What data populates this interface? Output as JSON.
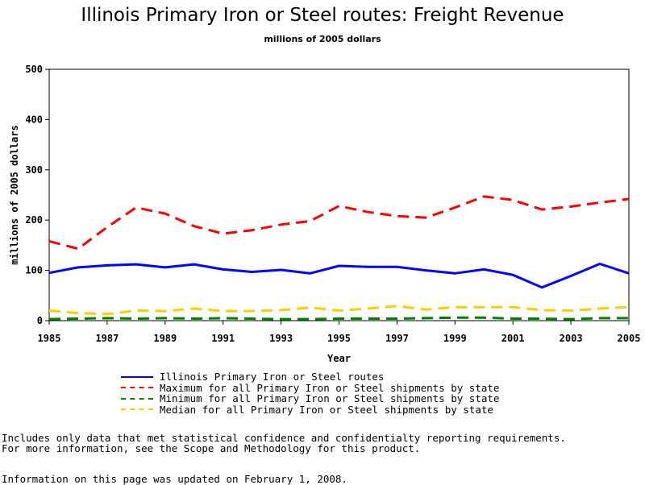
{
  "chart_data": {
    "type": "line",
    "title": "Illinois Primary Iron or Steel routes: Freight Revenue",
    "subtitle": "millions of 2005 dollars",
    "xlabel": "Year",
    "ylabel": "millions of 2005 dollars",
    "xlim": [
      1985,
      2005
    ],
    "ylim": [
      0,
      500
    ],
    "x_ticks": [
      1985,
      1987,
      1989,
      1991,
      1993,
      1995,
      1997,
      1999,
      2001,
      2003,
      2005
    ],
    "y_ticks": [
      0,
      100,
      200,
      300,
      400,
      500
    ],
    "x": [
      1985,
      1986,
      1987,
      1988,
      1989,
      1990,
      1991,
      1992,
      1993,
      1994,
      1995,
      1996,
      1997,
      1998,
      1999,
      2000,
      2001,
      2002,
      2003,
      2004,
      2005
    ],
    "series": [
      {
        "name": "Illinois Primary Iron or Steel routes",
        "color": "#0000ff",
        "style": "solid",
        "values": [
          95,
          106,
          110,
          112,
          106,
          112,
          102,
          97,
          101,
          94,
          109,
          107,
          107,
          100,
          94,
          102,
          91,
          66,
          89,
          113,
          94
        ]
      },
      {
        "name": "Maximum for all Primary Iron or Steel shipments by state",
        "color": "#ff0000",
        "style": "dashed",
        "values": [
          158,
          143,
          186,
          225,
          213,
          188,
          173,
          180,
          191,
          198,
          228,
          216,
          208,
          205,
          225,
          247,
          240,
          221,
          227,
          235,
          242
        ]
      },
      {
        "name": "Minimum for all Primary Iron or Steel shipments by state",
        "color": "#008000",
        "style": "dashed",
        "values": [
          3,
          4,
          5,
          4,
          5,
          4,
          5,
          4,
          3,
          3,
          4,
          4,
          4,
          5,
          6,
          6,
          4,
          4,
          3,
          5,
          5
        ]
      },
      {
        "name": "Median for all Primary Iron or Steel shipments by state",
        "color": "#ffcc00",
        "style": "dashed",
        "values": [
          20,
          15,
          13,
          20,
          19,
          24,
          19,
          19,
          21,
          26,
          20,
          24,
          29,
          22,
          27,
          27,
          27,
          21,
          20,
          24,
          27
        ]
      }
    ],
    "grid": false,
    "legend_position": "bottom-center"
  },
  "notes": {
    "line1": "Includes only data that met statistical confidence and confidentialty reporting requirements.",
    "line2": "For more information, see the Scope and Methodology for this product.",
    "updated": "Information on this page was updated on February 1, 2008."
  }
}
